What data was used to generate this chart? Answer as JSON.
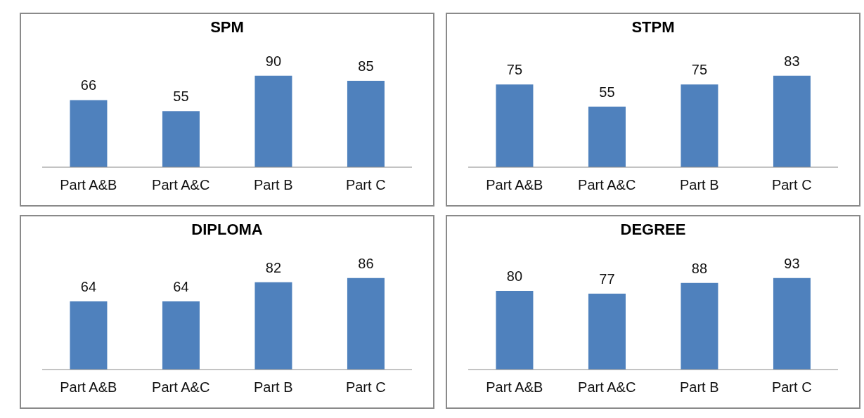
{
  "chart_data": [
    {
      "type": "bar",
      "title": "SPM",
      "categories": [
        "Part A&B",
        "Part A&C",
        "Part B",
        "Part C"
      ],
      "values": [
        66,
        55,
        90,
        85
      ],
      "color": "#4f81bd",
      "data_labels": true
    },
    {
      "type": "bar",
      "title": "STPM",
      "categories": [
        "Part A&B",
        "Part A&C",
        "Part B",
        "Part C"
      ],
      "values": [
        75,
        55,
        75,
        83
      ],
      "color": "#4f81bd",
      "data_labels": true
    },
    {
      "type": "bar",
      "title": "DIPLOMA",
      "categories": [
        "Part A&B",
        "Part A&C",
        "Part B",
        "Part C"
      ],
      "values": [
        64,
        64,
        82,
        86
      ],
      "color": "#4f81bd",
      "data_labels": true
    },
    {
      "type": "bar",
      "title": "DEGREE",
      "categories": [
        "Part A&B",
        "Part A&C",
        "Part B",
        "Part C"
      ],
      "values": [
        80,
        77,
        88,
        93
      ],
      "color": "#4f81bd",
      "data_labels": true
    }
  ]
}
